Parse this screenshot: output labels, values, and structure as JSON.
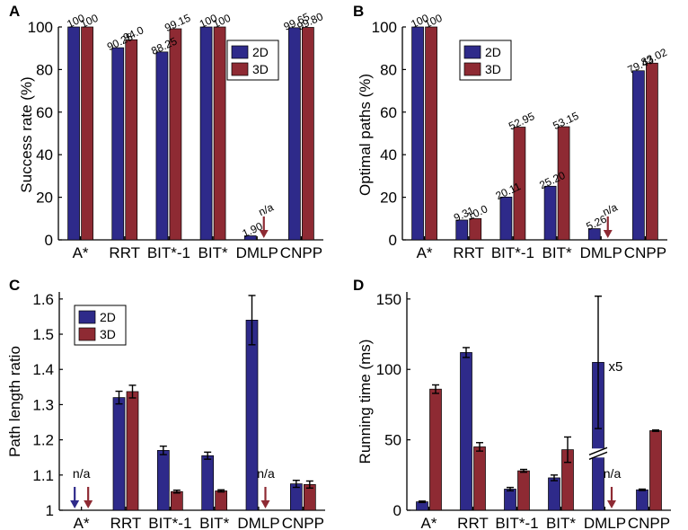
{
  "colors": {
    "s2d": "#2e2a8a",
    "s3d": "#8e2a33",
    "axis": "#000000"
  },
  "chart_data": [
    {
      "id": "A",
      "panel_label": "A",
      "type": "bar",
      "ylabel": "Success rate (%)",
      "ylim": [
        0,
        100
      ],
      "yticks": [
        0,
        20,
        40,
        60,
        80,
        100
      ],
      "categories": [
        "A*",
        "RRT",
        "BIT*-1",
        "BIT*",
        "DMLP",
        "CNPP"
      ],
      "series": [
        {
          "name": "2D",
          "values": [
            100,
            90.25,
            88.25,
            100,
            1.9,
            99.65
          ]
        },
        {
          "name": "3D",
          "values": [
            100,
            94.0,
            99.15,
            100,
            null,
            99.8
          ]
        }
      ],
      "value_labels": [
        [
          "100",
          "90.25",
          "88.25",
          "100",
          "1.90",
          "99.65"
        ],
        [
          "100",
          "94.0",
          "99.15",
          "100",
          "n/a",
          "99.80"
        ]
      ],
      "legend": [
        "2D",
        "3D"
      ],
      "legend_position": "top-right"
    },
    {
      "id": "B",
      "panel_label": "B",
      "type": "bar",
      "ylabel": "Optimal paths (%)",
      "ylim": [
        0,
        100
      ],
      "yticks": [
        0,
        20,
        40,
        60,
        80,
        100
      ],
      "categories": [
        "A*",
        "RRT",
        "BIT*-1",
        "BIT*",
        "DMLP",
        "CNPP"
      ],
      "series": [
        {
          "name": "2D",
          "values": [
            100,
            9.31,
            20.11,
            25.2,
            5.26,
            79.43
          ]
        },
        {
          "name": "3D",
          "values": [
            100,
            10.0,
            52.95,
            53.15,
            null,
            83.02
          ]
        }
      ],
      "value_labels": [
        [
          "100",
          "9.31",
          "20.11",
          "25.20",
          "5.26",
          "79.43"
        ],
        [
          "100",
          "10.0",
          "52.95",
          "53.15",
          "n/a",
          "83.02"
        ]
      ],
      "legend": [
        "2D",
        "3D"
      ],
      "legend_position": "top-center"
    },
    {
      "id": "C",
      "panel_label": "C",
      "type": "bar",
      "ylabel": "Path length ratio",
      "ylim": [
        1,
        1.62
      ],
      "yticks": [
        1,
        1.1,
        1.2,
        1.3,
        1.4,
        1.5,
        1.6
      ],
      "ytick_labels": [
        "1",
        "1.1",
        "1.2",
        "1.3",
        "1.4",
        "1.5",
        "1.6"
      ],
      "categories": [
        "A*",
        "RRT",
        "BIT*-1",
        "BIT*",
        "DMLP",
        "CNPP"
      ],
      "series": [
        {
          "name": "2D",
          "values": [
            null,
            1.32,
            1.17,
            1.155,
            1.54,
            1.075
          ],
          "errors": [
            null,
            0.018,
            0.012,
            0.01,
            0.07,
            0.01
          ]
        },
        {
          "name": "3D",
          "values": [
            null,
            1.337,
            1.053,
            1.055,
            null,
            1.073
          ],
          "errors": [
            null,
            0.018,
            0.004,
            0.003,
            null,
            0.01
          ]
        }
      ],
      "na_labels": [
        {
          "category": "A*",
          "text": "n/a",
          "series": [
            "2D",
            "3D"
          ]
        },
        {
          "category": "DMLP",
          "text": "n/a",
          "series": [
            "3D"
          ]
        }
      ],
      "legend": [
        "2D",
        "3D"
      ],
      "legend_position": "top-left"
    },
    {
      "id": "D",
      "panel_label": "D",
      "type": "bar",
      "ylabel": "Running time (ms)",
      "ylim": [
        0,
        155
      ],
      "yticks": [
        0,
        50,
        100,
        150
      ],
      "categories": [
        "A*",
        "RRT",
        "BIT*-1",
        "BIT*",
        "DMLP",
        "CNPP"
      ],
      "series": [
        {
          "name": "2D",
          "values": [
            6,
            112,
            15,
            23,
            105,
            14.5
          ],
          "errors": [
            0.5,
            3.5,
            1.2,
            2,
            47,
            0.5
          ]
        },
        {
          "name": "3D",
          "values": [
            86,
            45,
            28,
            43,
            null,
            56.5
          ],
          "errors": [
            3,
            3,
            1,
            9,
            null,
            0.5
          ]
        }
      ],
      "annotation": {
        "text": "x5",
        "category": "DMLP"
      },
      "na_labels": [
        {
          "category": "DMLP",
          "text": "n/a",
          "series": [
            "3D"
          ]
        }
      ],
      "axis_break": {
        "category": "DMLP"
      }
    }
  ]
}
